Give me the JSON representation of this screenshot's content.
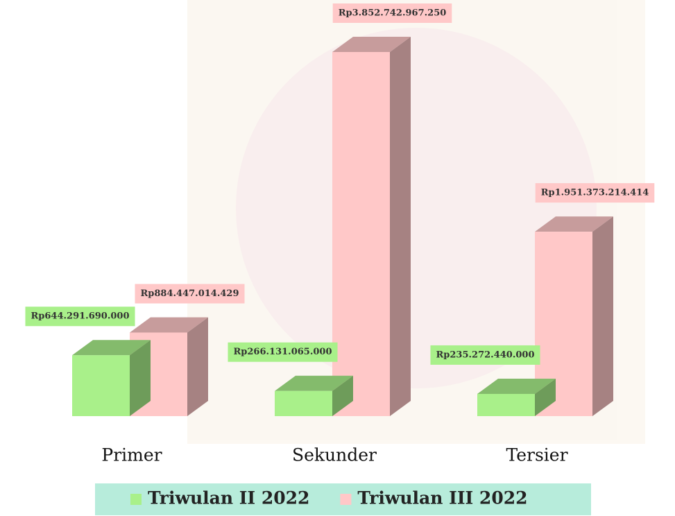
{
  "chart_data": {
    "type": "bar3d",
    "categories": [
      "Primer",
      "Sekunder",
      "Tersier"
    ],
    "series": [
      {
        "name": "Triwulan II 2022",
        "color": "#a9f08a",
        "values": [
          644291690000,
          266131065000,
          235272440000
        ],
        "value_labels": [
          "Rp644.291.690.000",
          "Rp266.131.065.000",
          "Rp235.272.440.000"
        ]
      },
      {
        "name": "Triwulan III 2022",
        "color": "#ffc8c8",
        "values": [
          884447014429,
          3852742967250,
          1951373214414
        ],
        "value_labels": [
          "Rp884.447.014.429",
          "Rp3.852.742.967.250",
          "Rp1.951.373.214.414"
        ]
      }
    ]
  }
}
